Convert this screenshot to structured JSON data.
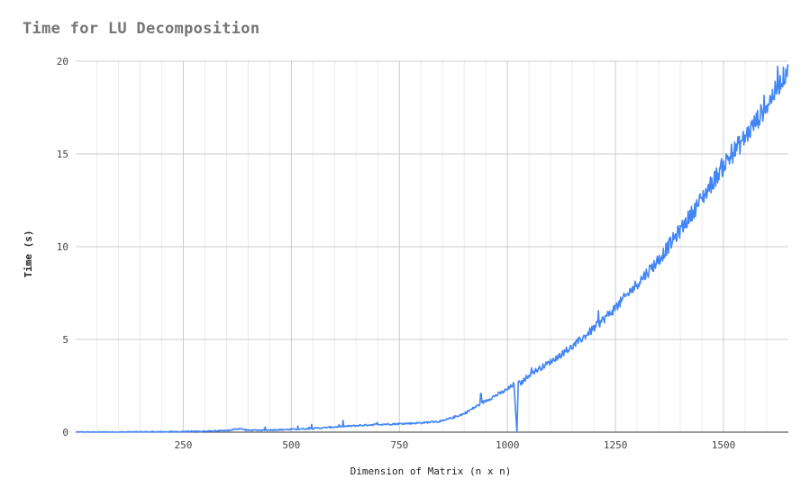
{
  "chart_data": {
    "type": "line",
    "title": "Time for LU Decomposition",
    "xlabel": "Dimension of Matrix (n x n)",
    "ylabel": "Time (s)",
    "xlim": [
      1,
      1650
    ],
    "ylim": [
      0,
      20
    ],
    "x_ticks": [
      250,
      500,
      750,
      1000,
      1250,
      1500
    ],
    "y_ticks": [
      0,
      5,
      10,
      15,
      20
    ],
    "grid": true,
    "legend": "none",
    "series": [
      {
        "color": "#4285f4",
        "x": [
          1,
          100,
          200,
          300,
          350,
          380,
          400,
          450,
          500,
          550,
          600,
          650,
          700,
          750,
          800,
          850,
          900,
          950,
          1000,
          1015,
          1022,
          1025,
          1030,
          1050,
          1100,
          1150,
          1200,
          1250,
          1300,
          1350,
          1400,
          1450,
          1500,
          1550,
          1600,
          1640,
          1650
        ],
        "y": [
          0,
          0.005,
          0.02,
          0.05,
          0.08,
          0.2,
          0.1,
          0.12,
          0.15,
          0.2,
          0.28,
          0.35,
          0.42,
          0.45,
          0.5,
          0.6,
          1.0,
          1.7,
          2.3,
          2.6,
          0.0,
          2.7,
          2.6,
          3.1,
          3.8,
          4.6,
          5.6,
          6.7,
          8.0,
          9.3,
          10.9,
          12.6,
          14.4,
          15.9,
          17.6,
          19.2,
          19.7
        ]
      }
    ]
  }
}
